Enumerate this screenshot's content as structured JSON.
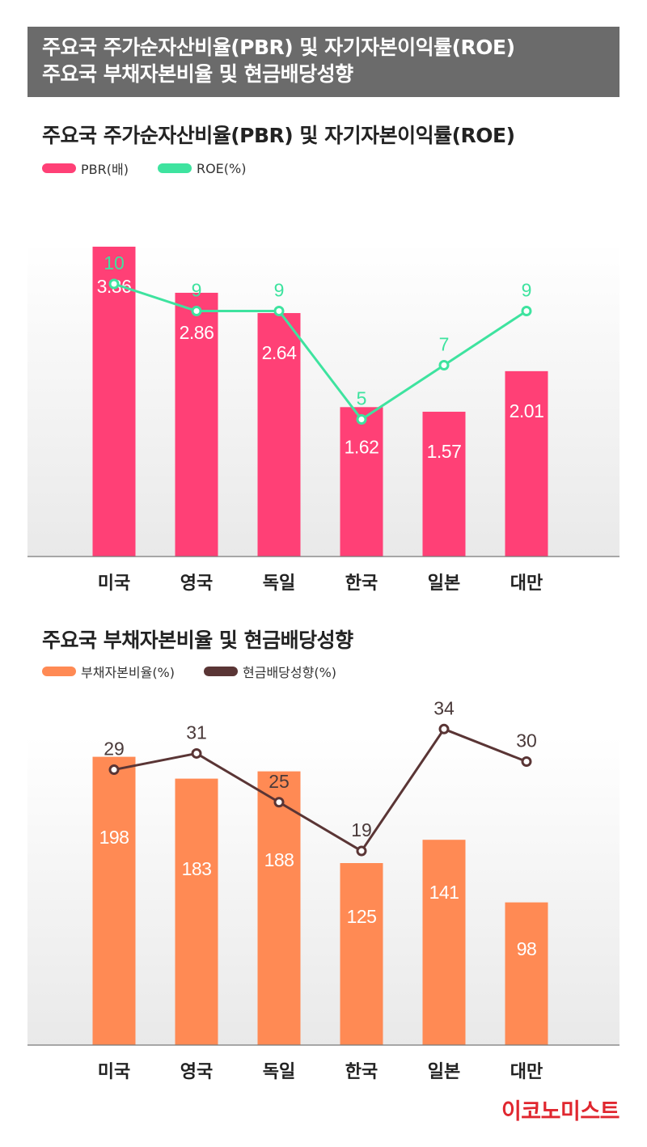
{
  "header": {
    "line1": "주요국 주가순자산비율(PBR) 및 자기자본이익률(ROE)",
    "line2": "주요국 부채자본비율 및 현금배당성향"
  },
  "brand": "이코노미스트",
  "colors": {
    "pbr": "#ff4076",
    "roe": "#3ee39f",
    "debt": "#ff8a54",
    "dividend": "#5a3535",
    "header_bg": "#6b6b6b",
    "brand": "#e0272f"
  },
  "chart_data": [
    {
      "type": "bar",
      "title": "주요국 주가순자산비율(PBR) 및 자기자본이익률(ROE)",
      "categories": [
        "미국",
        "영국",
        "독일",
        "한국",
        "일본",
        "대만"
      ],
      "series": [
        {
          "name": "PBR(배)",
          "type": "bar",
          "values": [
            3.36,
            2.86,
            2.64,
            1.62,
            1.57,
            2.01
          ],
          "labels": [
            "3.36",
            "2.86",
            "2.64",
            "1.62",
            "1.57",
            "2.01"
          ]
        },
        {
          "name": "ROE(%)",
          "type": "line",
          "values": [
            10,
            9,
            9,
            5,
            7,
            9
          ],
          "labels": [
            "10",
            "9",
            "9",
            "5",
            "7",
            "9"
          ]
        }
      ],
      "grid": false,
      "legend": "top-left"
    },
    {
      "type": "bar",
      "title": "주요국 부채자본비율 및 현금배당성향",
      "categories": [
        "미국",
        "영국",
        "독일",
        "한국",
        "일본",
        "대만"
      ],
      "series": [
        {
          "name": "부채자본비율(%)",
          "type": "bar",
          "values": [
            198,
            183,
            188,
            125,
            141,
            98
          ],
          "labels": [
            "198",
            "183",
            "188",
            "125",
            "141",
            "98"
          ]
        },
        {
          "name": "현금배당성향(%)",
          "type": "line",
          "values": [
            29,
            31,
            25,
            19,
            34,
            30
          ],
          "labels": [
            "29",
            "31",
            "25",
            "19",
            "34",
            "30"
          ]
        }
      ],
      "grid": false,
      "legend": "top-left"
    }
  ]
}
